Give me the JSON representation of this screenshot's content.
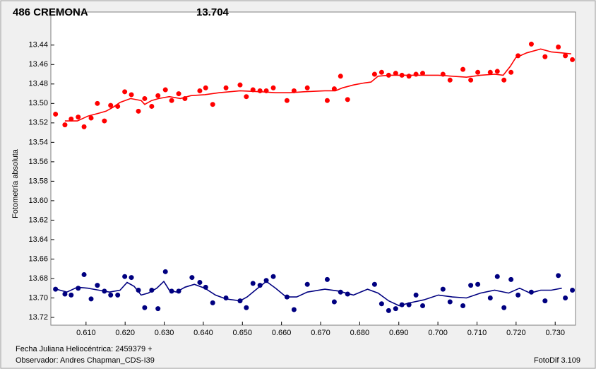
{
  "chart_data": {
    "type": "scatter",
    "title": "486 CREMONA",
    "title_color": "#ff0000",
    "subtitle": "13.704",
    "subtitle_color": "#000080",
    "ylabel": "Fotometría absoluta",
    "xlabel": "Fecha Juliana Heliocéntrica: 2459379 +",
    "observer": "Observador: Andres Chapman_CDS-I39",
    "software": "FotoDif 3.109",
    "invert_y": true,
    "grid": false,
    "xlim": [
      0.601,
      0.7352
    ],
    "ylim": [
      13.406,
      13.728
    ],
    "xticks": [
      {
        "value": 0.61,
        "label": "0.610"
      },
      {
        "value": 0.62,
        "label": "0.620"
      },
      {
        "value": 0.63,
        "label": "0.630"
      },
      {
        "value": 0.64,
        "label": "0.640"
      },
      {
        "value": 0.65,
        "label": "0.650"
      },
      {
        "value": 0.66,
        "label": "0.660"
      },
      {
        "value": 0.67,
        "label": "0.670"
      },
      {
        "value": 0.68,
        "label": "0.680"
      },
      {
        "value": 0.69,
        "label": "0.690"
      },
      {
        "value": 0.7,
        "label": "0.700"
      },
      {
        "value": 0.71,
        "label": "0.710"
      },
      {
        "value": 0.72,
        "label": "0.720"
      },
      {
        "value": 0.73,
        "label": "0.730"
      }
    ],
    "yticks": [
      13.44,
      13.46,
      13.48,
      {
        "value": 13.5,
        "label": "13.50"
      },
      13.52,
      13.54,
      13.56,
      13.58,
      {
        "value": 13.6,
        "label": "13.60"
      },
      13.62,
      13.64,
      13.66,
      13.68,
      {
        "value": 13.7,
        "label": "13.70"
      },
      13.72
    ],
    "series": [
      {
        "type": "scatter",
        "color": "#ff0000",
        "x": [
          0.6022,
          0.6046,
          0.6062,
          0.608,
          0.6095,
          0.6113,
          0.6129,
          0.6147,
          0.6163,
          0.6181,
          0.6199,
          0.6216,
          0.6234,
          0.625,
          0.6268,
          0.6284,
          0.6303,
          0.6319,
          0.6337,
          0.6353,
          0.6391,
          0.6406,
          0.6424,
          0.6458,
          0.6494,
          0.651,
          0.6527,
          0.6545,
          0.6561,
          0.6579,
          0.6614,
          0.6632,
          0.6666,
          0.6717,
          0.6735,
          0.6751,
          0.6769,
          0.6838,
          0.6856,
          0.6874,
          0.6892,
          0.6908,
          0.6926,
          0.6944,
          0.6961,
          0.7013,
          0.7031,
          0.7064,
          0.7084,
          0.7102,
          0.7134,
          0.7152,
          0.7169,
          0.7187,
          0.7205,
          0.7239,
          0.7274,
          0.7308,
          0.7326,
          0.7344
        ],
        "values": [
          13.511,
          13.522,
          13.516,
          13.514,
          13.524,
          13.515,
          13.5,
          13.518,
          13.502,
          13.503,
          13.488,
          13.491,
          13.508,
          13.495,
          13.503,
          13.492,
          13.486,
          13.497,
          13.49,
          13.495,
          13.487,
          13.484,
          13.501,
          13.484,
          13.481,
          13.493,
          13.486,
          13.487,
          13.487,
          13.484,
          13.497,
          13.487,
          13.484,
          13.497,
          13.485,
          13.472,
          13.496,
          13.47,
          13.468,
          13.471,
          13.469,
          13.471,
          13.472,
          13.47,
          13.469,
          13.47,
          13.476,
          13.465,
          13.476,
          13.468,
          13.468,
          13.467,
          13.476,
          13.468,
          13.451,
          13.439,
          13.452,
          13.442,
          13.451,
          13.455
        ]
      },
      {
        "type": "line",
        "color": "#ff0000",
        "x": [
          0.6046,
          0.6078,
          0.6105,
          0.6133,
          0.6151,
          0.6169,
          0.6187,
          0.6214,
          0.6241,
          0.625,
          0.6268,
          0.6286,
          0.6313,
          0.6341,
          0.6368,
          0.6404,
          0.644,
          0.6494,
          0.6548,
          0.6585,
          0.6621,
          0.6657,
          0.6711,
          0.6738,
          0.6756,
          0.6784,
          0.6811,
          0.6829,
          0.6847,
          0.6874,
          0.691,
          0.6964,
          0.7001,
          0.7037,
          0.7073,
          0.7109,
          0.7145,
          0.7167,
          0.7185,
          0.7199,
          0.7227,
          0.7263,
          0.729,
          0.7317,
          0.7341
        ],
        "values": [
          13.518,
          13.518,
          13.513,
          13.51,
          13.508,
          13.504,
          13.499,
          13.495,
          13.497,
          13.501,
          13.497,
          13.495,
          13.493,
          13.495,
          13.492,
          13.491,
          13.489,
          13.487,
          13.488,
          13.489,
          13.489,
          13.488,
          13.487,
          13.487,
          13.484,
          13.481,
          13.479,
          13.478,
          13.472,
          13.471,
          13.471,
          13.471,
          13.471,
          13.472,
          13.473,
          13.471,
          13.47,
          13.471,
          13.462,
          13.453,
          13.448,
          13.444,
          13.447,
          13.448,
          13.449
        ]
      },
      {
        "type": "scatter",
        "color": "#000080",
        "x": [
          0.6022,
          0.6046,
          0.6062,
          0.608,
          0.6095,
          0.6113,
          0.6129,
          0.6147,
          0.6163,
          0.6181,
          0.6199,
          0.6216,
          0.6234,
          0.625,
          0.6268,
          0.6284,
          0.6303,
          0.6319,
          0.6337,
          0.6371,
          0.6391,
          0.6406,
          0.6424,
          0.6458,
          0.6494,
          0.651,
          0.6527,
          0.6545,
          0.6561,
          0.6579,
          0.6614,
          0.6632,
          0.6666,
          0.6717,
          0.6735,
          0.6751,
          0.6769,
          0.6838,
          0.6856,
          0.6874,
          0.6892,
          0.6908,
          0.6926,
          0.6944,
          0.6961,
          0.7013,
          0.7031,
          0.7064,
          0.7084,
          0.7102,
          0.7134,
          0.7152,
          0.7169,
          0.7187,
          0.7205,
          0.7239,
          0.7274,
          0.7308,
          0.7326,
          0.7344
        ],
        "values": [
          13.691,
          13.696,
          13.697,
          13.69,
          13.676,
          13.701,
          13.687,
          13.693,
          13.697,
          13.697,
          13.678,
          13.679,
          13.692,
          13.71,
          13.692,
          13.711,
          13.673,
          13.693,
          13.693,
          13.679,
          13.684,
          13.689,
          13.705,
          13.7,
          13.703,
          13.71,
          13.685,
          13.687,
          13.682,
          13.678,
          13.699,
          13.712,
          13.686,
          13.681,
          13.704,
          13.694,
          13.696,
          13.686,
          13.706,
          13.713,
          13.711,
          13.707,
          13.707,
          13.697,
          13.708,
          13.691,
          13.704,
          13.708,
          13.687,
          13.686,
          13.7,
          13.678,
          13.71,
          13.681,
          13.697,
          13.694,
          13.703,
          13.677,
          13.7,
          13.692
        ]
      },
      {
        "type": "line",
        "color": "#000080",
        "x": [
          0.6024,
          0.6051,
          0.6078,
          0.6105,
          0.6133,
          0.616,
          0.6187,
          0.6205,
          0.6223,
          0.6241,
          0.6259,
          0.6281,
          0.6299,
          0.6313,
          0.6331,
          0.6353,
          0.6377,
          0.6404,
          0.6431,
          0.6458,
          0.6494,
          0.6512,
          0.6539,
          0.6561,
          0.6585,
          0.6612,
          0.6639,
          0.6666,
          0.6711,
          0.6747,
          0.6784,
          0.682,
          0.6847,
          0.6874,
          0.6901,
          0.6928,
          0.6964,
          0.7001,
          0.7037,
          0.7073,
          0.7109,
          0.7145,
          0.7181,
          0.7209,
          0.7236,
          0.7263,
          0.729,
          0.7317
        ],
        "values": [
          13.691,
          13.694,
          13.689,
          13.69,
          13.692,
          13.694,
          13.692,
          13.684,
          13.688,
          13.697,
          13.695,
          13.69,
          13.683,
          13.692,
          13.694,
          13.689,
          13.686,
          13.69,
          13.697,
          13.701,
          13.703,
          13.699,
          13.69,
          13.683,
          13.69,
          13.699,
          13.699,
          13.694,
          13.691,
          13.693,
          13.697,
          13.691,
          13.695,
          13.703,
          13.708,
          13.705,
          13.702,
          13.697,
          13.699,
          13.7,
          13.695,
          13.692,
          13.695,
          13.69,
          13.695,
          13.692,
          13.692,
          13.69
        ]
      }
    ]
  }
}
